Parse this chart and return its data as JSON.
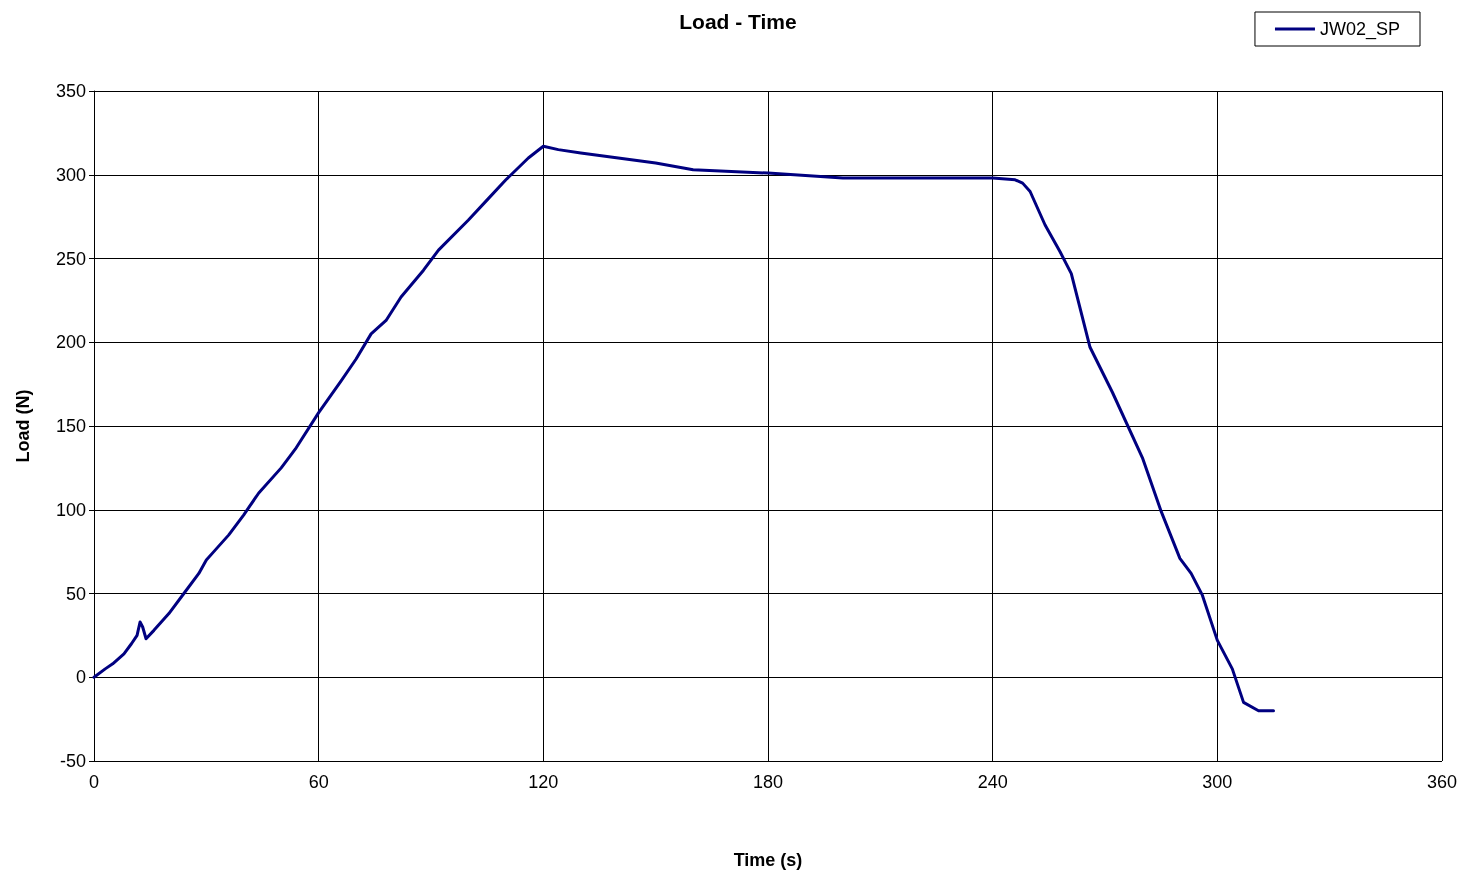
{
  "chart_data": {
    "type": "line",
    "title": "Load - Time",
    "xlabel": "Time (s)",
    "ylabel": "Load (N)",
    "xlim": [
      0,
      360
    ],
    "xticks": [
      0,
      60,
      120,
      180,
      240,
      300,
      360
    ],
    "ylim": [
      -50,
      350
    ],
    "yticks": [
      -50,
      0,
      50,
      100,
      150,
      200,
      250,
      300,
      350
    ],
    "grid": true,
    "legend": "top right",
    "marker": "none",
    "line_style": "solid",
    "series": [
      {
        "name": "JW02_SP",
        "color": "#000080",
        "x": [
          0,
          3,
          5,
          8,
          10,
          11.5,
          12.3,
          13,
          13.9,
          16,
          20,
          24,
          28,
          30,
          32,
          36,
          40,
          44,
          50,
          54,
          60,
          66,
          70,
          74,
          78,
          82,
          88,
          92,
          100,
          105,
          110,
          116,
          120,
          124,
          130,
          140,
          150,
          160,
          180,
          200,
          220,
          240,
          246,
          248,
          250,
          254,
          258,
          261,
          266,
          272,
          280,
          285,
          290,
          293,
          296,
          300,
          304,
          307,
          311,
          315
        ],
        "values": [
          0,
          5,
          8,
          14,
          20,
          25,
          33,
          30,
          23,
          28,
          38,
          50,
          62,
          70,
          75,
          85,
          97,
          110,
          125,
          137,
          158,
          177,
          190,
          205,
          213,
          227,
          243,
          255,
          273,
          285,
          297,
          310,
          317,
          315,
          313,
          310,
          307,
          303,
          301,
          298,
          298,
          298,
          297,
          295,
          290,
          270,
          254,
          241,
          197,
          170,
          131,
          99,
          71,
          62,
          49,
          22,
          5,
          -15,
          -20,
          -20
        ]
      }
    ]
  }
}
